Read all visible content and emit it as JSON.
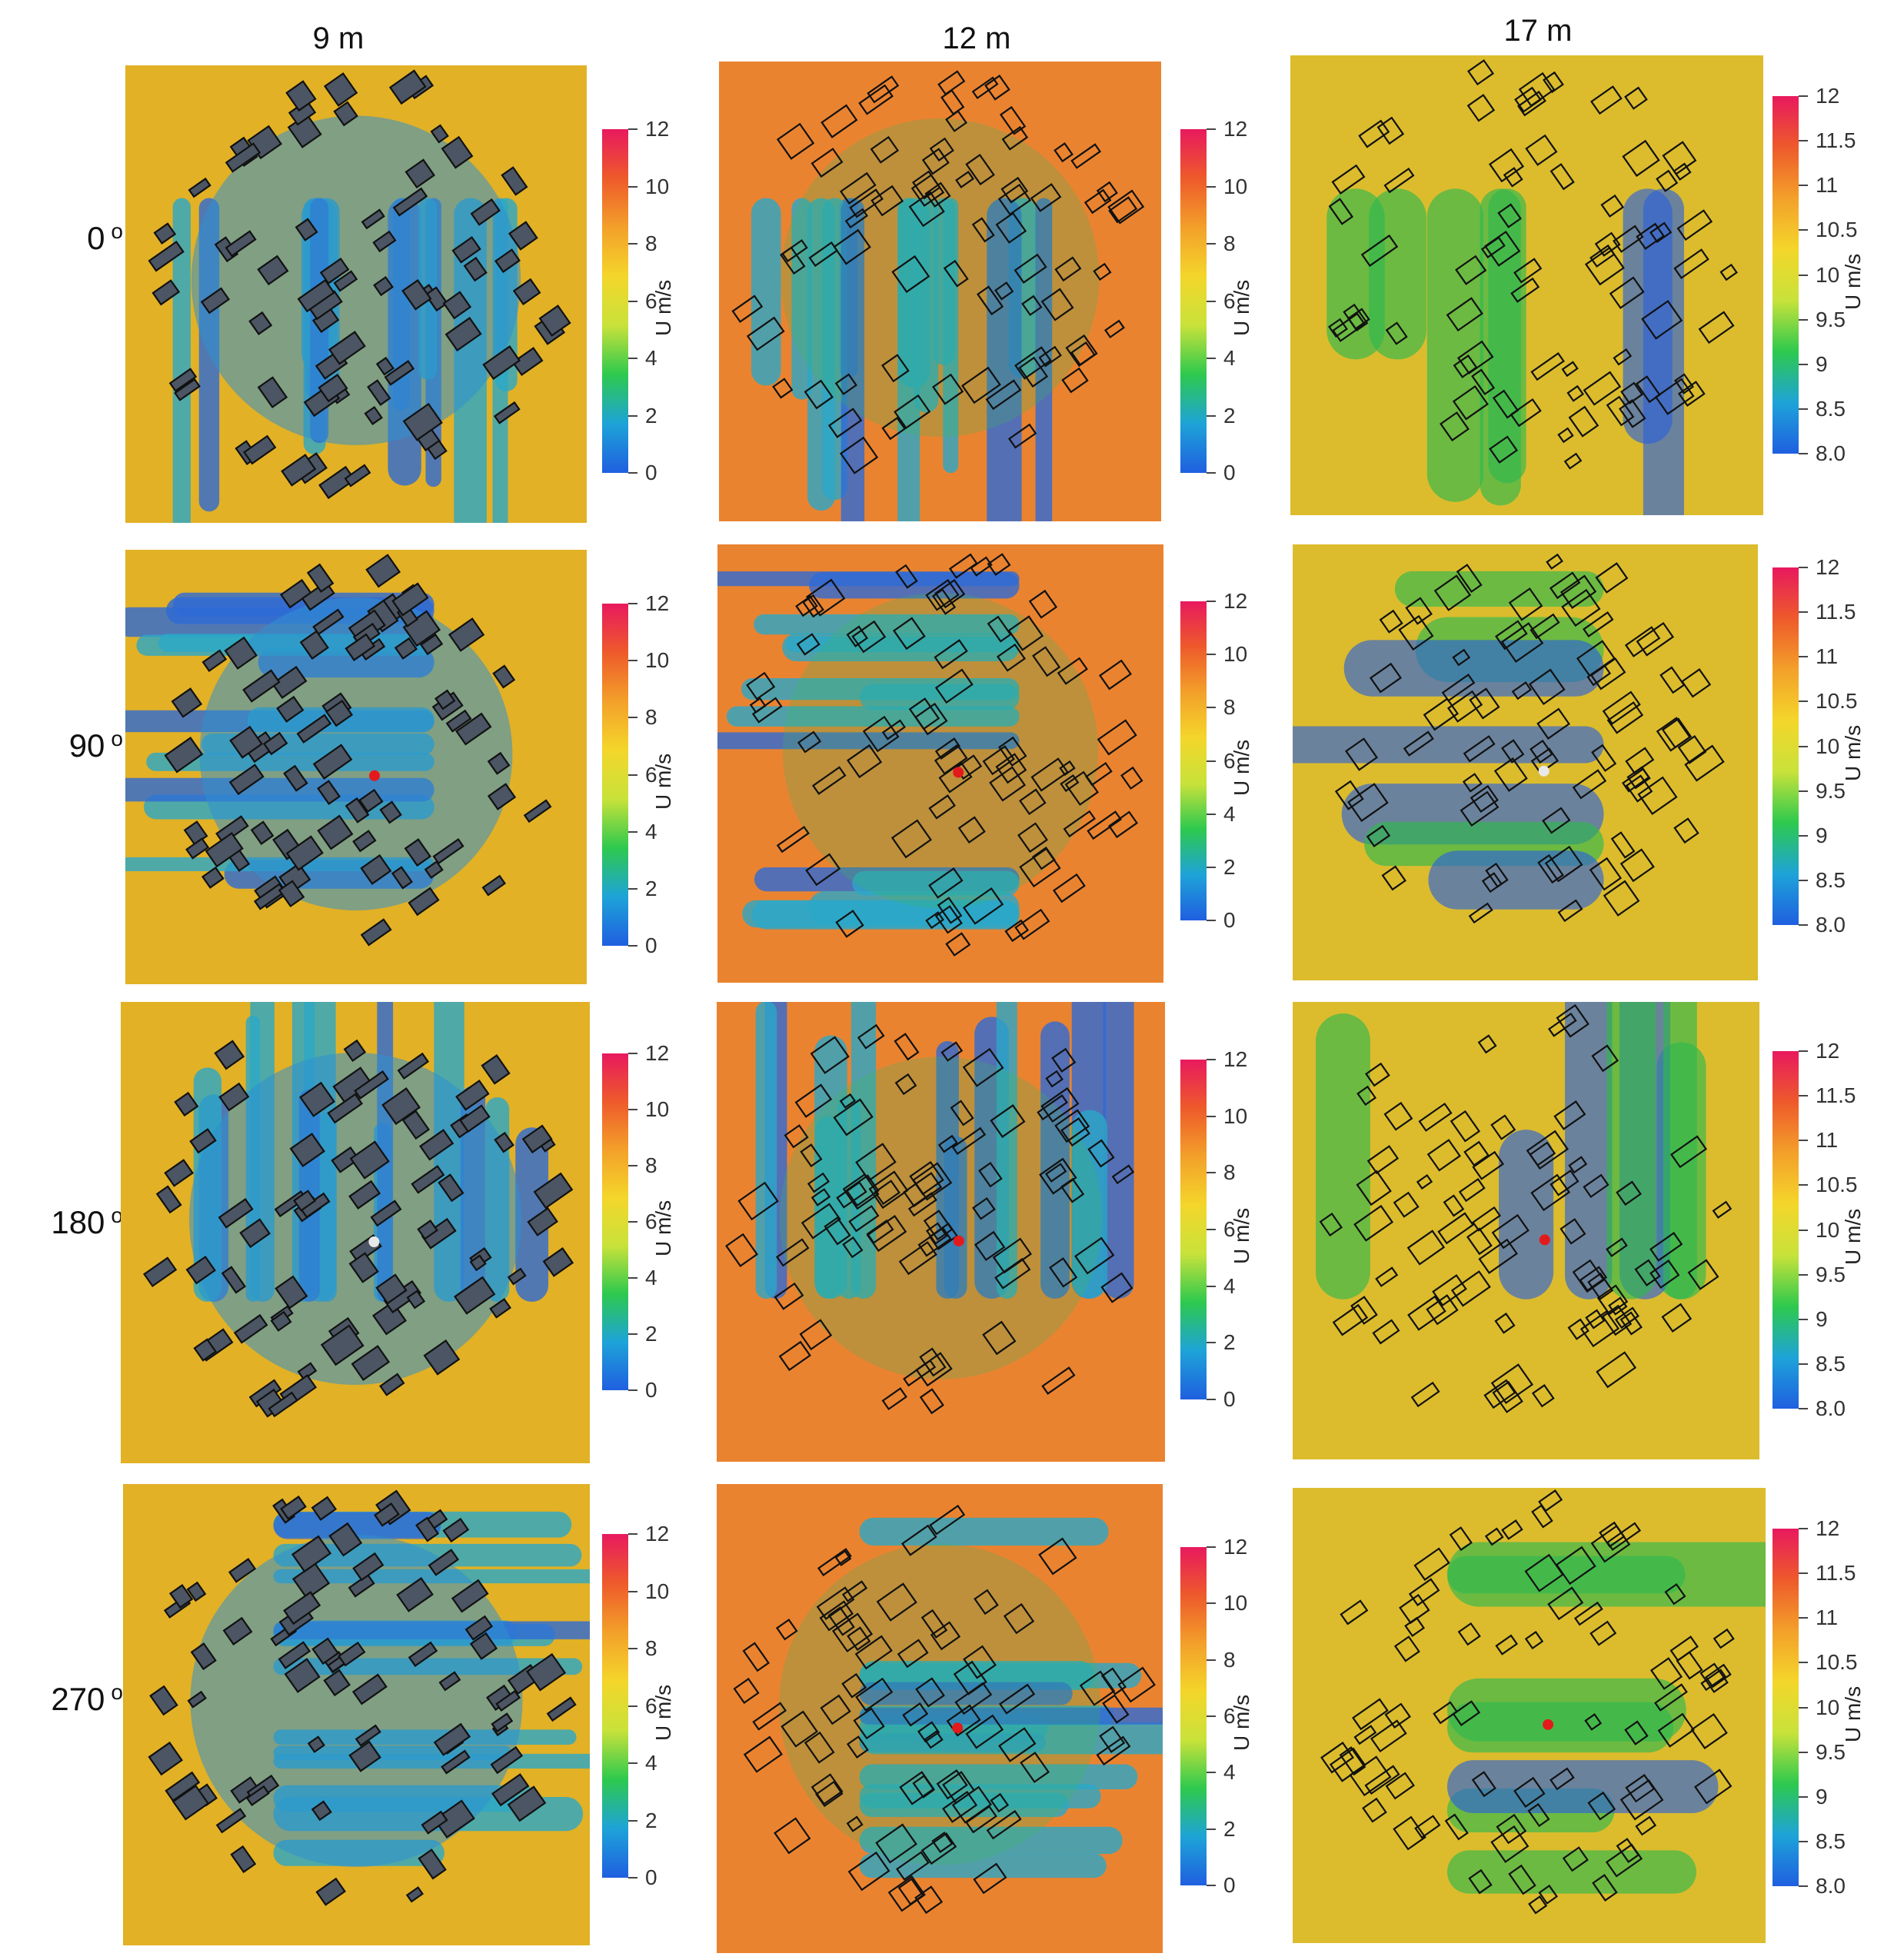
{
  "columns": [
    {
      "label": "9 m",
      "scale": "wide"
    },
    {
      "label": "12 m",
      "scale": "wide"
    },
    {
      "label": "17 m",
      "scale": "narrow"
    }
  ],
  "rows": [
    {
      "label": "0",
      "unit": "o"
    },
    {
      "label": "90",
      "unit": "o"
    },
    {
      "label": "180",
      "unit": "o"
    },
    {
      "label": "270",
      "unit": "o"
    }
  ],
  "colorbars": {
    "wide": {
      "label": "U m/s",
      "ticks": [
        "0",
        "2",
        "4",
        "6",
        "8",
        "10",
        "12"
      ],
      "range": [
        0,
        12
      ]
    },
    "narrow": {
      "label": "U m/s",
      "ticks": [
        "8.0",
        "8.5",
        "9",
        "9.5",
        "10",
        "10.5",
        "11",
        "11.5",
        "12"
      ],
      "range": [
        8.0,
        12
      ]
    }
  },
  "chart_data": {
    "type": "heatmap",
    "description_fields": [
      "columns",
      "rows"
    ],
    "panel_background": {
      "9 m": "#e2b126",
      "12 m": "#ea8330",
      "17 m": "#dcbc2d"
    },
    "colorscale": [
      "#1f5fe0",
      "#1ea3d8",
      "#2dc94e",
      "#c8e23a",
      "#f4d62a",
      "#f3a02a",
      "#ee5a2b",
      "#e8195e"
    ],
    "markers": {
      "0": [
        null,
        null,
        null
      ],
      "90": [
        "red",
        "red",
        "white"
      ],
      "180": [
        "white",
        "red",
        "red"
      ],
      "270": [
        null,
        "red",
        "red"
      ]
    }
  }
}
